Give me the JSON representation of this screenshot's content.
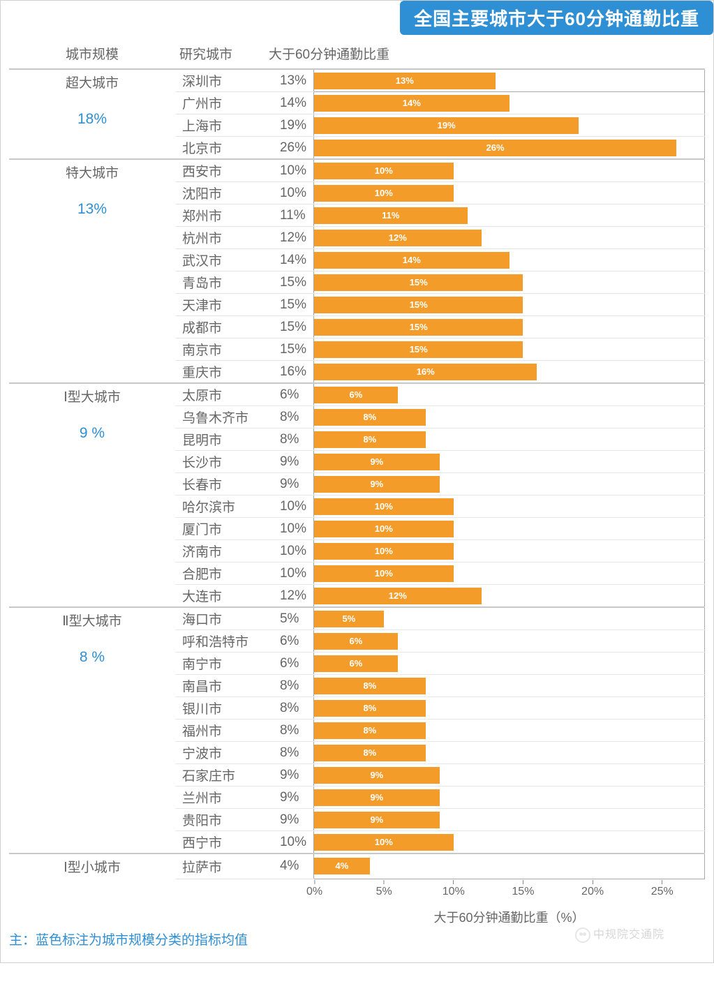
{
  "title": "全国主要城市大于60分钟通勤比重",
  "columns": {
    "category": "城市规模",
    "city": "研究城市",
    "metric": "大于60分钟通勤比重"
  },
  "chart": {
    "type": "bar",
    "bar_color": "#f39c2a",
    "bar_label_color": "#ffffff",
    "bar_label_fontsize": 13,
    "background_color": "#ffffff",
    "grid_color": "#e6e6e6",
    "xmax": 28,
    "ticks": [
      0,
      5,
      10,
      15,
      20,
      25
    ],
    "tick_labels": [
      "0%",
      "5%",
      "10%",
      "15%",
      "20%",
      "25%"
    ],
    "xlabel": "大于60分钟通勤比重（%）"
  },
  "groups": [
    {
      "name": "超大城市",
      "avg": "18%",
      "rows": [
        {
          "city": "深圳市",
          "pct": 13
        },
        {
          "city": "广州市",
          "pct": 14
        },
        {
          "city": "上海市",
          "pct": 19
        },
        {
          "city": "北京市",
          "pct": 26
        }
      ]
    },
    {
      "name": "特大城市",
      "avg": "13%",
      "rows": [
        {
          "city": "西安市",
          "pct": 10
        },
        {
          "city": "沈阳市",
          "pct": 10
        },
        {
          "city": "郑州市",
          "pct": 11
        },
        {
          "city": "杭州市",
          "pct": 12
        },
        {
          "city": "武汉市",
          "pct": 14
        },
        {
          "city": "青岛市",
          "pct": 15
        },
        {
          "city": "天津市",
          "pct": 15
        },
        {
          "city": "成都市",
          "pct": 15
        },
        {
          "city": "南京市",
          "pct": 15
        },
        {
          "city": "重庆市",
          "pct": 16
        }
      ]
    },
    {
      "name": "Ⅰ型大城市",
      "avg": "9 %",
      "rows": [
        {
          "city": "太原市",
          "pct": 6
        },
        {
          "city": "乌鲁木齐市",
          "pct": 8
        },
        {
          "city": "昆明市",
          "pct": 8
        },
        {
          "city": "长沙市",
          "pct": 9
        },
        {
          "city": "长春市",
          "pct": 9
        },
        {
          "city": "哈尔滨市",
          "pct": 10
        },
        {
          "city": "厦门市",
          "pct": 10
        },
        {
          "city": "济南市",
          "pct": 10
        },
        {
          "city": "合肥市",
          "pct": 10
        },
        {
          "city": "大连市",
          "pct": 12
        }
      ]
    },
    {
      "name": "Ⅱ型大城市",
      "avg": "8 %",
      "rows": [
        {
          "city": "海口市",
          "pct": 5
        },
        {
          "city": "呼和浩特市",
          "pct": 6
        },
        {
          "city": "南宁市",
          "pct": 6
        },
        {
          "city": "南昌市",
          "pct": 8
        },
        {
          "city": "银川市",
          "pct": 8
        },
        {
          "city": "福州市",
          "pct": 8
        },
        {
          "city": "宁波市",
          "pct": 8
        },
        {
          "city": "石家庄市",
          "pct": 9
        },
        {
          "city": "兰州市",
          "pct": 9
        },
        {
          "city": "贵阳市",
          "pct": 9
        },
        {
          "city": "西宁市",
          "pct": 10
        }
      ]
    },
    {
      "name": "Ⅰ型小城市",
      "avg": "",
      "rows": [
        {
          "city": "拉萨市",
          "pct": 4
        }
      ]
    }
  ],
  "note": "主：蓝色标注为城市规模分类的指标均值",
  "watermark": "中规院交通院",
  "colors": {
    "title_bg": "#2f8fd4",
    "title_fg": "#ffffff",
    "avg_color": "#2f8fd4",
    "text_color": "#666666"
  }
}
